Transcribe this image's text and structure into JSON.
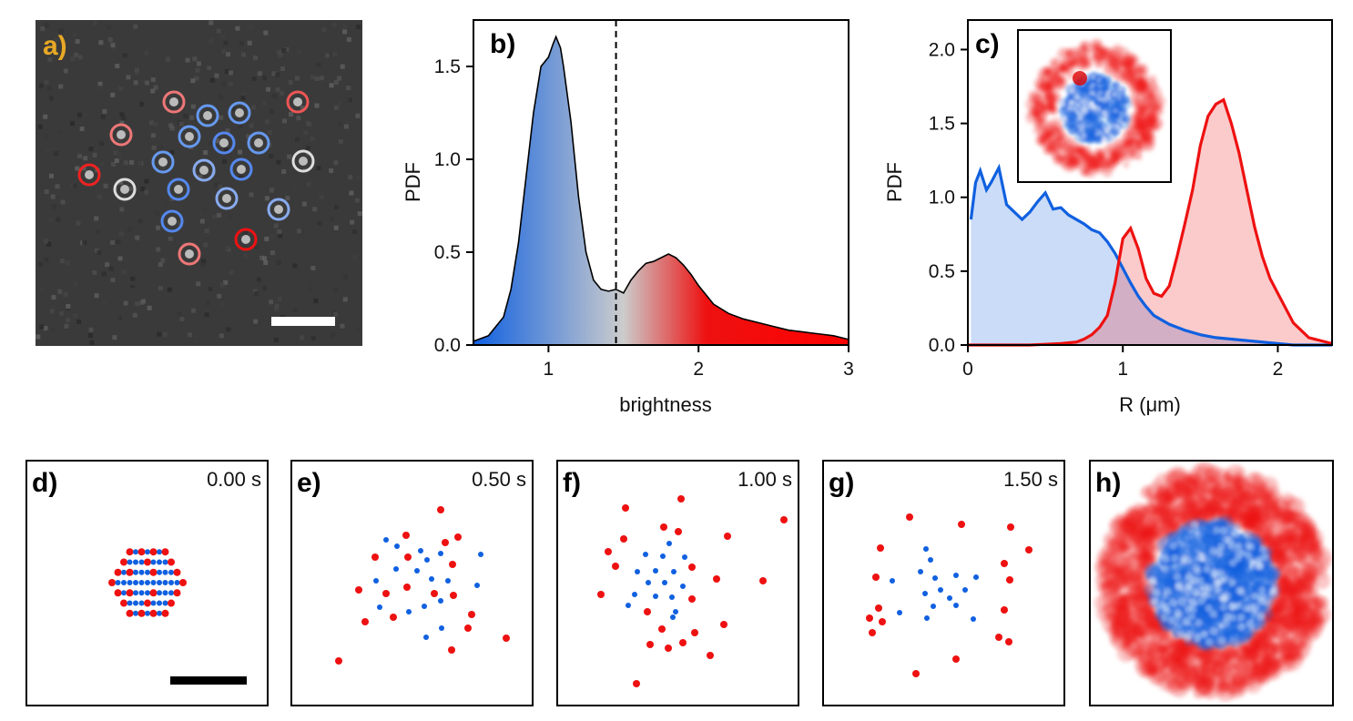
{
  "panel_labels": {
    "a": "a)",
    "b": "b)",
    "c": "c)",
    "d": "d)",
    "e": "e)",
    "f": "f)",
    "g": "g)",
    "h": "h)"
  },
  "colors": {
    "blue": "#1060e0",
    "red": "#ee1111",
    "gold": "#e8a825",
    "gray": "#cccccc"
  },
  "chart_data": [
    {
      "id": "b",
      "type": "area",
      "xlabel": "brightness",
      "ylabel": "PDF",
      "xlim": [
        0.5,
        3.0
      ],
      "ylim": [
        0.0,
        1.75
      ],
      "xticks": [
        "1",
        "2",
        "3"
      ],
      "yticks": [
        "0.0",
        "0.5",
        "1.0",
        "1.5"
      ],
      "threshold": 1.45,
      "x": [
        0.5,
        0.6,
        0.7,
        0.75,
        0.8,
        0.85,
        0.9,
        0.95,
        1.0,
        1.03,
        1.05,
        1.08,
        1.1,
        1.15,
        1.2,
        1.25,
        1.3,
        1.35,
        1.4,
        1.45,
        1.5,
        1.55,
        1.6,
        1.65,
        1.7,
        1.75,
        1.8,
        1.85,
        1.9,
        1.95,
        2.0,
        2.05,
        2.1,
        2.2,
        2.3,
        2.4,
        2.5,
        2.6,
        2.7,
        2.8,
        2.9,
        3.0
      ],
      "y": [
        0.02,
        0.05,
        0.15,
        0.3,
        0.55,
        0.9,
        1.25,
        1.5,
        1.55,
        1.62,
        1.66,
        1.6,
        1.5,
        1.2,
        0.8,
        0.5,
        0.35,
        0.3,
        0.29,
        0.3,
        0.28,
        0.35,
        0.4,
        0.44,
        0.45,
        0.47,
        0.49,
        0.47,
        0.43,
        0.38,
        0.32,
        0.27,
        0.22,
        0.17,
        0.14,
        0.12,
        0.1,
        0.08,
        0.07,
        0.06,
        0.05,
        0.03
      ]
    },
    {
      "id": "c",
      "type": "area",
      "xlabel": "R (μm)",
      "ylabel": "PDF",
      "xlim": [
        0.0,
        2.35
      ],
      "ylim": [
        0.0,
        2.2
      ],
      "xticks": [
        "0",
        "1",
        "2"
      ],
      "yticks": [
        "0.0",
        "0.5",
        "1.0",
        "1.5",
        "2.0"
      ],
      "series": [
        {
          "color": "blue",
          "x": [
            0.02,
            0.05,
            0.08,
            0.12,
            0.15,
            0.2,
            0.25,
            0.3,
            0.35,
            0.4,
            0.45,
            0.5,
            0.55,
            0.6,
            0.65,
            0.7,
            0.75,
            0.8,
            0.85,
            0.9,
            0.95,
            1.0,
            1.05,
            1.1,
            1.15,
            1.2,
            1.3,
            1.4,
            1.5,
            1.6,
            1.7,
            1.8,
            1.9,
            2.0,
            2.1,
            2.2,
            2.35
          ],
          "y": [
            0.85,
            1.1,
            1.18,
            1.05,
            1.1,
            1.2,
            0.95,
            0.9,
            0.85,
            0.9,
            0.97,
            1.03,
            0.92,
            0.93,
            0.88,
            0.85,
            0.82,
            0.78,
            0.76,
            0.7,
            0.62,
            0.52,
            0.42,
            0.33,
            0.26,
            0.2,
            0.14,
            0.1,
            0.07,
            0.05,
            0.04,
            0.03,
            0.02,
            0.01,
            0.0,
            0.0,
            0.0
          ]
        },
        {
          "color": "red",
          "x": [
            0.0,
            0.4,
            0.6,
            0.7,
            0.75,
            0.8,
            0.85,
            0.9,
            0.95,
            1.0,
            1.05,
            1.1,
            1.15,
            1.2,
            1.25,
            1.3,
            1.35,
            1.4,
            1.45,
            1.5,
            1.55,
            1.6,
            1.65,
            1.7,
            1.75,
            1.8,
            1.85,
            1.9,
            1.95,
            2.0,
            2.05,
            2.1,
            2.2,
            2.35
          ],
          "y": [
            0.0,
            0.0,
            0.01,
            0.02,
            0.04,
            0.07,
            0.12,
            0.2,
            0.42,
            0.72,
            0.79,
            0.65,
            0.45,
            0.35,
            0.33,
            0.4,
            0.6,
            0.82,
            1.05,
            1.35,
            1.55,
            1.63,
            1.66,
            1.5,
            1.3,
            1.05,
            0.8,
            0.6,
            0.45,
            0.35,
            0.25,
            0.15,
            0.05,
            0.01
          ]
        }
      ]
    },
    {
      "id": "snapshots",
      "type": "scatter",
      "times": [
        "0.00 s",
        "0.50 s",
        "1.00 s",
        "1.50 s"
      ]
    }
  ]
}
